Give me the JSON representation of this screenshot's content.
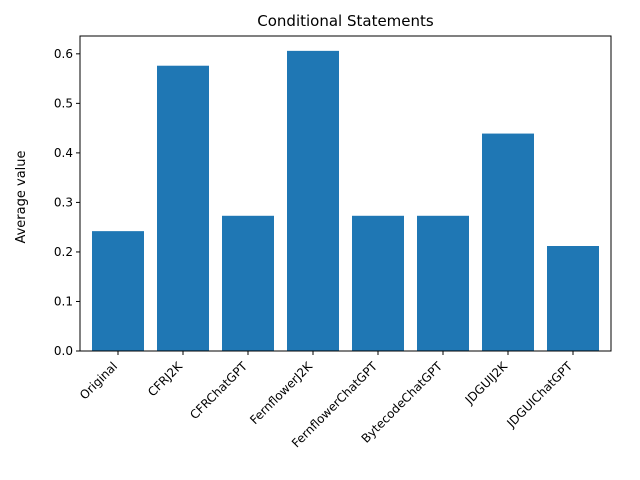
{
  "chart_data": {
    "type": "bar",
    "title": "Conditional Statements",
    "xlabel": "",
    "ylabel": "Average value",
    "categories": [
      "Original",
      "CFRJ2K",
      "CFRChatGPT",
      "FernflowerJ2K",
      "FernflowerChatGPT",
      "BytecodeChatGPT",
      "JDGUIJ2K",
      "JDGUIChatGPT"
    ],
    "values": [
      0.242,
      0.576,
      0.273,
      0.606,
      0.273,
      0.273,
      0.439,
      0.212
    ],
    "ylim": [
      0,
      0.636
    ],
    "yticks": [
      "0.0",
      "0.1",
      "0.2",
      "0.3",
      "0.4",
      "0.5",
      "0.6"
    ],
    "bar_color": "#1f77b4",
    "grid": false,
    "legend": "none"
  }
}
